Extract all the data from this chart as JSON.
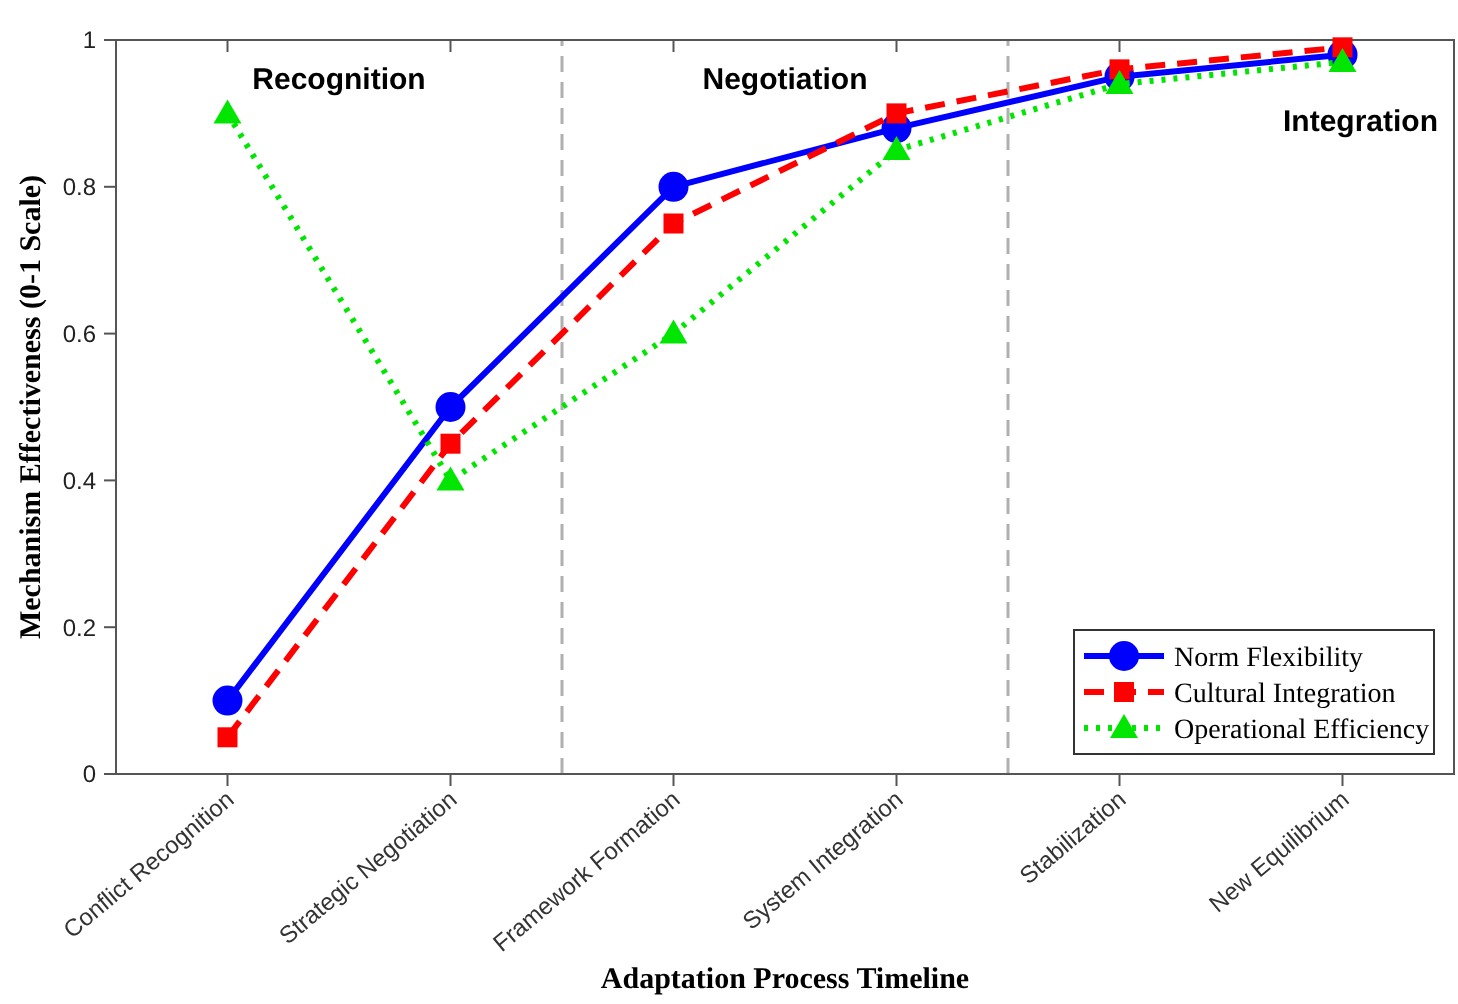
{
  "chart_data": {
    "type": "line",
    "xlabel": "Adaptation Process Timeline",
    "ylabel": "Mechanism Effectiveness (0-1 Scale)",
    "categories": [
      "Conflict Recognition",
      "Strategic Negotiation",
      "Framework Formation",
      "System Integration",
      "Stabilization",
      "New Equilibrium"
    ],
    "ylim": [
      0,
      1
    ],
    "yticks": [
      0,
      0.2,
      0.4,
      0.6,
      0.8,
      1
    ],
    "series": [
      {
        "name": "Norm Flexibility",
        "color": "#0000ff",
        "marker": "circle",
        "line_style": "solid",
        "values": [
          0.1,
          0.5,
          0.8,
          0.88,
          0.95,
          0.98
        ]
      },
      {
        "name": "Cultural Integration",
        "color": "#ff0000",
        "marker": "square",
        "line_style": "dashed",
        "values": [
          0.05,
          0.45,
          0.75,
          0.9,
          0.96,
          0.99
        ]
      },
      {
        "name": "Operational Efficiency",
        "color": "#00e600",
        "marker": "triangle",
        "line_style": "dotted",
        "values": [
          0.9,
          0.4,
          0.6,
          0.85,
          0.94,
          0.97
        ]
      }
    ],
    "annotations": [
      "Recognition",
      "Negotiation",
      "Integration"
    ],
    "legend": "bottom right",
    "grid": false
  }
}
